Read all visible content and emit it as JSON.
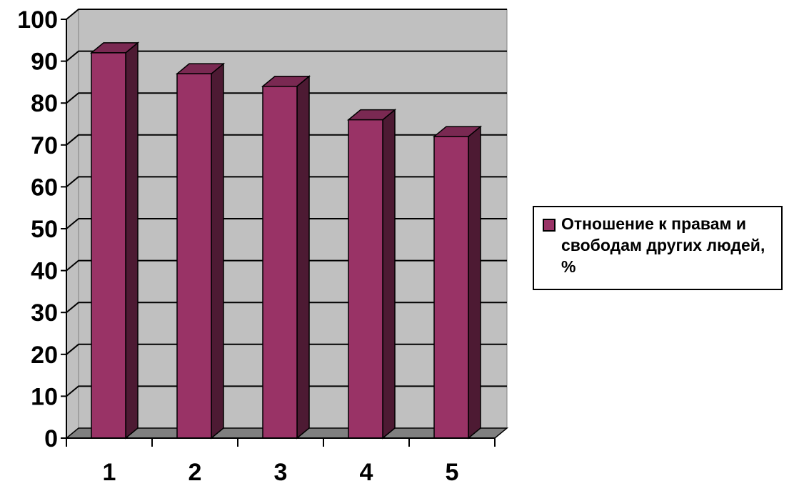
{
  "chart_data": {
    "type": "bar",
    "style": "3d-column",
    "categories": [
      "1",
      "2",
      "3",
      "4",
      "5"
    ],
    "series": [
      {
        "name": "Отношение к правам и свободам других людей, %",
        "values": [
          92,
          87,
          84,
          76,
          72
        ],
        "color": "#993366"
      }
    ],
    "ylim": [
      0,
      100
    ],
    "yticks": [
      "0",
      "10",
      "20",
      "30",
      "40",
      "50",
      "60",
      "70",
      "80",
      "90",
      "100"
    ],
    "grid": true,
    "legend_position": "right",
    "colors": {
      "wall": "#c0c0c0",
      "floor": "#808080",
      "bar_front": "#993366",
      "bar_side": "#4d1a33",
      "bar_top": "#7a2952"
    }
  }
}
